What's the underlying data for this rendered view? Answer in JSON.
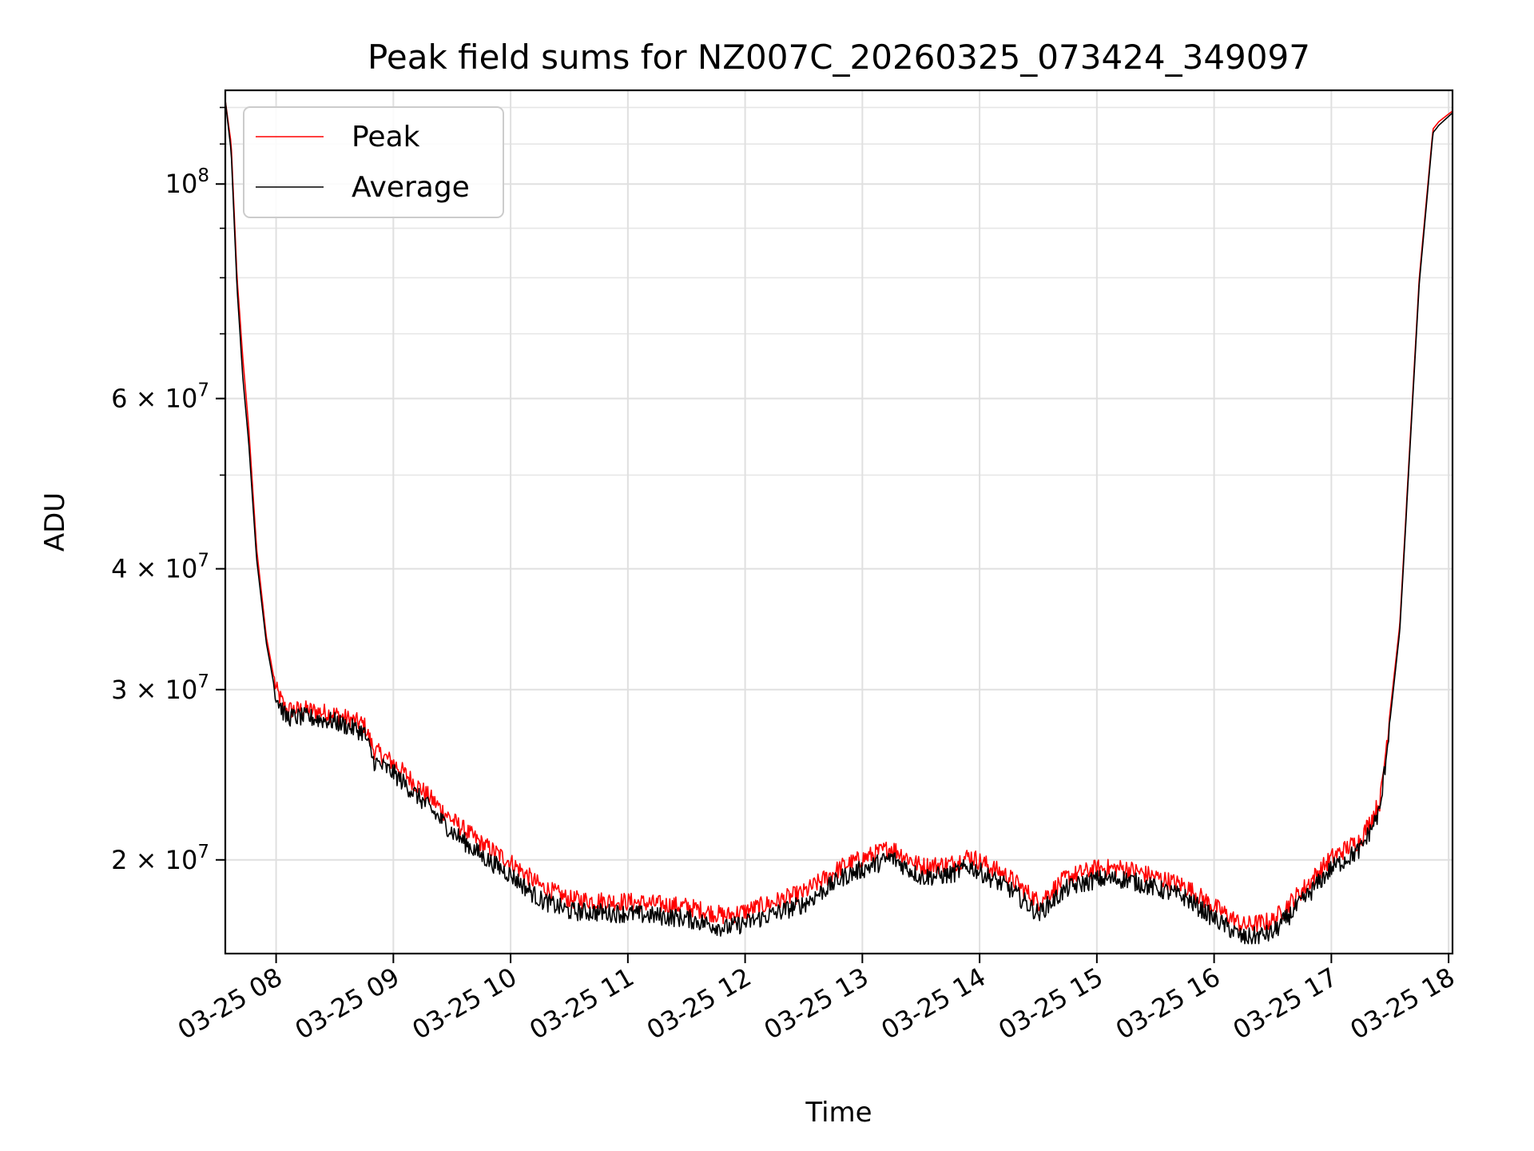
{
  "chart_data": {
    "type": "line",
    "title": "Peak field sums for NZ007C_20260325_073424_349097",
    "xlabel": "Time",
    "ylabel": "ADU",
    "y_scale": "log",
    "grid": true,
    "legend_position": "top-left",
    "xlim": [
      "03-25 07:34",
      "03-25 18:02"
    ],
    "ylim": [
      16000000,
      125000000
    ],
    "x_ticks": [
      {
        "value": "03-25 08:00",
        "label": "03-25 08"
      },
      {
        "value": "03-25 09:00",
        "label": "03-25 09"
      },
      {
        "value": "03-25 10:00",
        "label": "03-25 10"
      },
      {
        "value": "03-25 11:00",
        "label": "03-25 11"
      },
      {
        "value": "03-25 12:00",
        "label": "03-25 12"
      },
      {
        "value": "03-25 13:00",
        "label": "03-25 13"
      },
      {
        "value": "03-25 14:00",
        "label": "03-25 14"
      },
      {
        "value": "03-25 15:00",
        "label": "03-25 15"
      },
      {
        "value": "03-25 16:00",
        "label": "03-25 16"
      },
      {
        "value": "03-25 17:00",
        "label": "03-25 17"
      },
      {
        "value": "03-25 18:00",
        "label": "03-25 18"
      }
    ],
    "y_ticks": [
      {
        "value": 100000000,
        "mantissa": "",
        "base": "10",
        "exp": "8"
      },
      {
        "value": 60000000,
        "mantissa": "6",
        "base": "10",
        "exp": "7"
      },
      {
        "value": 40000000,
        "mantissa": "4",
        "base": "10",
        "exp": "7"
      },
      {
        "value": 30000000,
        "mantissa": "3",
        "base": "10",
        "exp": "7"
      },
      {
        "value": 20000000,
        "mantissa": "2",
        "base": "10",
        "exp": "7"
      }
    ],
    "series": [
      {
        "name": "Peak",
        "color": "#ff0000",
        "x": [
          "03-25 07:34",
          "03-25 07:37",
          "03-25 07:40",
          "03-25 07:43",
          "03-25 07:46",
          "03-25 07:50",
          "03-25 07:55",
          "03-25 08:00",
          "03-25 08:05",
          "03-25 08:15",
          "03-25 08:30",
          "03-25 08:45",
          "03-25 08:50",
          "03-25 09:00",
          "03-25 09:15",
          "03-25 09:30",
          "03-25 09:45",
          "03-25 10:00",
          "03-25 10:15",
          "03-25 10:30",
          "03-25 11:00",
          "03-25 11:30",
          "03-25 11:50",
          "03-25 12:00",
          "03-25 12:30",
          "03-25 12:50",
          "03-25 13:15",
          "03-25 13:30",
          "03-25 13:45",
          "03-25 13:55",
          "03-25 14:15",
          "03-25 14:30",
          "03-25 14:45",
          "03-25 15:00",
          "03-25 15:15",
          "03-25 15:30",
          "03-25 15:45",
          "03-25 16:00",
          "03-25 16:15",
          "03-25 16:30",
          "03-25 16:45",
          "03-25 17:00",
          "03-25 17:15",
          "03-25 17:25",
          "03-25 17:35",
          "03-25 17:45",
          "03-25 17:52",
          "03-25 17:55",
          "03-25 18:02"
        ],
        "values": [
          122000000,
          110000000,
          80000000,
          66000000,
          56000000,
          42000000,
          34000000,
          30000000,
          28600000,
          28600000,
          28300000,
          27600000,
          26000000,
          25200000,
          23600000,
          22000000,
          20800000,
          19900000,
          18800000,
          18200000,
          18100000,
          17900000,
          17500000,
          17700000,
          18500000,
          19700000,
          20600000,
          19700000,
          19800000,
          20200000,
          19200000,
          18100000,
          19200000,
          19600000,
          19600000,
          19200000,
          18800000,
          17900000,
          17100000,
          17300000,
          18600000,
          20100000,
          21000000,
          23000000,
          35000000,
          80000000,
          114000000,
          116000000,
          119000000
        ]
      },
      {
        "name": "Average",
        "color": "#000000",
        "x": [
          "03-25 07:34",
          "03-25 07:37",
          "03-25 07:40",
          "03-25 07:43",
          "03-25 07:46",
          "03-25 07:50",
          "03-25 07:55",
          "03-25 08:00",
          "03-25 08:05",
          "03-25 08:15",
          "03-25 08:30",
          "03-25 08:45",
          "03-25 08:50",
          "03-25 09:00",
          "03-25 09:15",
          "03-25 09:30",
          "03-25 09:45",
          "03-25 10:00",
          "03-25 10:15",
          "03-25 10:30",
          "03-25 11:00",
          "03-25 11:30",
          "03-25 11:50",
          "03-25 12:00",
          "03-25 12:30",
          "03-25 12:50",
          "03-25 13:15",
          "03-25 13:30",
          "03-25 13:45",
          "03-25 13:55",
          "03-25 14:15",
          "03-25 14:30",
          "03-25 14:45",
          "03-25 15:00",
          "03-25 15:15",
          "03-25 15:30",
          "03-25 15:45",
          "03-25 16:00",
          "03-25 16:15",
          "03-25 16:30",
          "03-25 16:45",
          "03-25 17:00",
          "03-25 17:15",
          "03-25 17:25",
          "03-25 17:35",
          "03-25 17:45",
          "03-25 17:52",
          "03-25 17:55",
          "03-25 18:02"
        ],
        "values": [
          122000000,
          108000000,
          78000000,
          63000000,
          54000000,
          41000000,
          33500000,
          29500000,
          28100000,
          28100000,
          27800000,
          27100000,
          25300000,
          24600000,
          23000000,
          21400000,
          20200000,
          19300000,
          18200000,
          17700000,
          17600000,
          17400000,
          17000000,
          17200000,
          18000000,
          19200000,
          20100000,
          19200000,
          19300000,
          19700000,
          18700000,
          17600000,
          18700000,
          19100000,
          19100000,
          18700000,
          18300000,
          17400000,
          16600000,
          16800000,
          18100000,
          19600000,
          20500000,
          22500000,
          34500000,
          79000000,
          113000000,
          115000000,
          118500000
        ]
      }
    ]
  }
}
